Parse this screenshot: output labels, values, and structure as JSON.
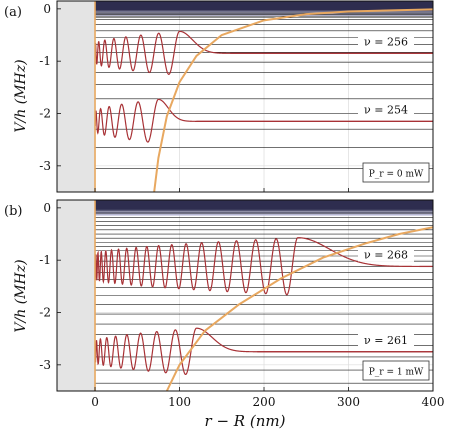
{
  "chart_data": [
    {
      "panel_label": "(a)",
      "type": "line",
      "xlabel": "r − R (nm)",
      "ylabel": "V/h (MHz)",
      "xlim": [
        -45,
        400
      ],
      "ylim": [
        -3.5,
        0.15
      ],
      "x_ticks": [
        0,
        100,
        200,
        300,
        400
      ],
      "y_ticks": [
        0,
        -1,
        -2,
        -3
      ],
      "x_tick_labels": [
        "0",
        "100",
        "200",
        "300",
        "400"
      ],
      "y_tick_labels": [
        "0",
        "-1",
        "-2",
        "-3"
      ],
      "wall_region_x": [
        -45,
        0
      ],
      "grid": true,
      "power_label": "P_r = 0 mW",
      "potential_curve": {
        "color": "#e8a860",
        "points": [
          [
            70,
            -3.5
          ],
          [
            75,
            -2.85
          ],
          [
            85,
            -2.05
          ],
          [
            100,
            -1.4
          ],
          [
            120,
            -0.9
          ],
          [
            150,
            -0.5
          ],
          [
            200,
            -0.22
          ],
          [
            250,
            -0.1
          ],
          [
            300,
            -0.05
          ],
          [
            400,
            -0.01
          ]
        ]
      },
      "energy_levels": [
        -0.08,
        -0.11,
        -0.14,
        -0.17,
        -0.2,
        -0.3,
        -0.42,
        -0.55,
        -0.68,
        -0.83,
        -1.02,
        -1.22,
        -1.45,
        -1.72,
        -2.0,
        -2.3,
        -2.65,
        -3.05
      ],
      "states": [
        {
          "label": "ν = 256",
          "energy": -0.85,
          "last_peak_x": 100,
          "amplitude": 0.42
        },
        {
          "label": "ν = 254",
          "energy": -2.15,
          "last_peak_x": 75,
          "amplitude": 0.42
        }
      ]
    },
    {
      "panel_label": "(b)",
      "type": "line",
      "xlabel": "r − R (nm)",
      "ylabel": "V/h (MHz)",
      "xlim": [
        -45,
        400
      ],
      "ylim": [
        -3.5,
        0.15
      ],
      "x_ticks": [
        0,
        100,
        200,
        300,
        400
      ],
      "y_ticks": [
        0,
        -1,
        -2,
        -3
      ],
      "x_tick_labels": [
        "0",
        "100",
        "200",
        "300",
        "400"
      ],
      "y_tick_labels": [
        "0",
        "-1",
        "-2",
        "-3"
      ],
      "wall_region_x": [
        -45,
        0
      ],
      "grid": true,
      "power_label": "P_r = 1 mW",
      "potential_curve": {
        "color": "#e8a860",
        "points": [
          [
            85,
            -3.5
          ],
          [
            100,
            -3.0
          ],
          [
            130,
            -2.35
          ],
          [
            170,
            -1.85
          ],
          [
            220,
            -1.35
          ],
          [
            270,
            -0.95
          ],
          [
            320,
            -0.68
          ],
          [
            360,
            -0.5
          ],
          [
            400,
            -0.37
          ]
        ]
      },
      "energy_levels": [
        -0.1,
        -0.18,
        -0.26,
        -0.34,
        -0.42,
        -0.5,
        -0.58,
        -0.66,
        -0.74,
        -0.82,
        -0.92,
        -1.02,
        -1.12,
        -1.24,
        -1.37,
        -1.52,
        -1.68,
        -1.85,
        -2.03,
        -2.22,
        -2.42,
        -2.63,
        -2.85,
        -3.1,
        -3.35
      ],
      "states": [
        {
          "label": "ν = 268",
          "energy": -1.12,
          "last_peak_x": 240,
          "amplitude": 0.55
        },
        {
          "label": "ν = 261",
          "energy": -2.75,
          "last_peak_x": 120,
          "amplitude": 0.45
        }
      ]
    }
  ]
}
